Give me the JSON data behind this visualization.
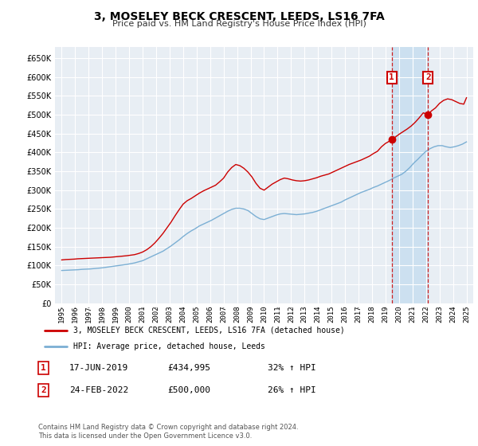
{
  "title": "3, MOSELEY BECK CRESCENT, LEEDS, LS16 7FA",
  "subtitle": "Price paid vs. HM Land Registry's House Price Index (HPI)",
  "legend_line1": "3, MOSELEY BECK CRESCENT, LEEDS, LS16 7FA (detached house)",
  "legend_line2": "HPI: Average price, detached house, Leeds",
  "marker1_date": 2019.46,
  "marker1_label": "1",
  "marker1_value": 434995,
  "marker2_date": 2022.15,
  "marker2_label": "2",
  "marker2_value": 500000,
  "footer1": "Contains HM Land Registry data © Crown copyright and database right 2024.",
  "footer2": "This data is licensed under the Open Government Licence v3.0.",
  "red_color": "#cc0000",
  "blue_color": "#7bafd4",
  "bg_color": "#e8eef4",
  "shaded_color": "#cce0f0",
  "ylim_min": 0,
  "ylim_max": 680000,
  "xlim_min": 1994.5,
  "xlim_max": 2025.5,
  "red_x": [
    1995.0,
    1995.3,
    1995.6,
    1995.9,
    1996.2,
    1996.5,
    1996.8,
    1997.1,
    1997.4,
    1997.7,
    1998.0,
    1998.3,
    1998.6,
    1998.9,
    1999.2,
    1999.5,
    1999.8,
    2000.1,
    2000.4,
    2000.7,
    2001.0,
    2001.3,
    2001.6,
    2001.9,
    2002.2,
    2002.5,
    2002.8,
    2003.1,
    2003.4,
    2003.7,
    2004.0,
    2004.3,
    2004.6,
    2004.9,
    2005.2,
    2005.5,
    2005.8,
    2006.1,
    2006.4,
    2006.7,
    2007.0,
    2007.3,
    2007.6,
    2007.9,
    2008.2,
    2008.5,
    2008.8,
    2009.1,
    2009.4,
    2009.7,
    2010.0,
    2010.3,
    2010.6,
    2010.9,
    2011.2,
    2011.5,
    2011.8,
    2012.1,
    2012.4,
    2012.7,
    2013.0,
    2013.3,
    2013.6,
    2013.9,
    2014.2,
    2014.5,
    2014.8,
    2015.1,
    2015.4,
    2015.7,
    2016.0,
    2016.3,
    2016.6,
    2016.9,
    2017.2,
    2017.5,
    2017.8,
    2018.1,
    2018.4,
    2018.7,
    2019.0,
    2019.2,
    2019.46,
    2019.7,
    2020.0,
    2020.3,
    2020.6,
    2020.9,
    2021.2,
    2021.5,
    2021.8,
    2022.15,
    2022.4,
    2022.7,
    2023.0,
    2023.3,
    2023.6,
    2023.9,
    2024.2,
    2024.5,
    2024.8,
    2025.0
  ],
  "red_y": [
    115000,
    116000,
    116500,
    117000,
    118000,
    118500,
    119000,
    119500,
    120000,
    120500,
    121000,
    121500,
    122000,
    123000,
    124000,
    125000,
    126000,
    127500,
    129000,
    132000,
    136000,
    142000,
    150000,
    160000,
    172000,
    185000,
    200000,
    215000,
    232000,
    248000,
    263000,
    272000,
    278000,
    285000,
    292000,
    298000,
    303000,
    308000,
    313000,
    322000,
    332000,
    348000,
    360000,
    368000,
    365000,
    358000,
    348000,
    335000,
    318000,
    305000,
    300000,
    308000,
    316000,
    322000,
    328000,
    332000,
    330000,
    327000,
    325000,
    324000,
    325000,
    327000,
    330000,
    333000,
    337000,
    340000,
    343000,
    348000,
    353000,
    358000,
    363000,
    368000,
    372000,
    376000,
    380000,
    385000,
    390000,
    397000,
    403000,
    415000,
    424000,
    428000,
    434995,
    440000,
    448000,
    455000,
    462000,
    470000,
    480000,
    492000,
    505000,
    500000,
    510000,
    518000,
    530000,
    538000,
    542000,
    540000,
    535000,
    530000,
    528000,
    545000
  ],
  "blue_x": [
    1995.0,
    1995.3,
    1995.6,
    1995.9,
    1996.2,
    1996.5,
    1996.8,
    1997.1,
    1997.4,
    1997.7,
    1998.0,
    1998.3,
    1998.6,
    1998.9,
    1999.2,
    1999.5,
    1999.8,
    2000.1,
    2000.4,
    2000.7,
    2001.0,
    2001.3,
    2001.6,
    2001.9,
    2002.2,
    2002.5,
    2002.8,
    2003.1,
    2003.4,
    2003.7,
    2004.0,
    2004.3,
    2004.6,
    2004.9,
    2005.2,
    2005.5,
    2005.8,
    2006.1,
    2006.4,
    2006.7,
    2007.0,
    2007.3,
    2007.6,
    2007.9,
    2008.2,
    2008.5,
    2008.8,
    2009.1,
    2009.4,
    2009.7,
    2010.0,
    2010.3,
    2010.6,
    2010.9,
    2011.2,
    2011.5,
    2011.8,
    2012.1,
    2012.4,
    2012.7,
    2013.0,
    2013.3,
    2013.6,
    2013.9,
    2014.2,
    2014.5,
    2014.8,
    2015.1,
    2015.4,
    2015.7,
    2016.0,
    2016.3,
    2016.6,
    2016.9,
    2017.2,
    2017.5,
    2017.8,
    2018.1,
    2018.4,
    2018.7,
    2019.0,
    2019.3,
    2019.6,
    2019.9,
    2020.2,
    2020.5,
    2020.8,
    2021.1,
    2021.4,
    2021.7,
    2022.0,
    2022.3,
    2022.6,
    2022.9,
    2023.2,
    2023.5,
    2023.8,
    2024.1,
    2024.4,
    2024.7,
    2025.0
  ],
  "blue_y": [
    87000,
    87500,
    88000,
    88500,
    89000,
    90000,
    90500,
    91000,
    92000,
    93000,
    94000,
    95500,
    97000,
    98500,
    100000,
    101500,
    103000,
    105000,
    107000,
    110000,
    113000,
    118000,
    123000,
    128000,
    133000,
    138000,
    145000,
    152000,
    160000,
    168000,
    177000,
    185000,
    192000,
    198000,
    205000,
    210000,
    215000,
    220000,
    226000,
    232000,
    238000,
    244000,
    249000,
    252000,
    252000,
    250000,
    246000,
    238000,
    230000,
    224000,
    222000,
    226000,
    230000,
    234000,
    237000,
    238000,
    237000,
    236000,
    235000,
    236000,
    237000,
    239000,
    241000,
    244000,
    248000,
    252000,
    256000,
    260000,
    264000,
    268000,
    274000,
    279000,
    284000,
    289000,
    294000,
    298000,
    302000,
    307000,
    311000,
    316000,
    321000,
    326000,
    332000,
    337000,
    342000,
    350000,
    360000,
    372000,
    382000,
    393000,
    403000,
    410000,
    415000,
    418000,
    418000,
    415000,
    413000,
    415000,
    418000,
    422000,
    428000
  ]
}
